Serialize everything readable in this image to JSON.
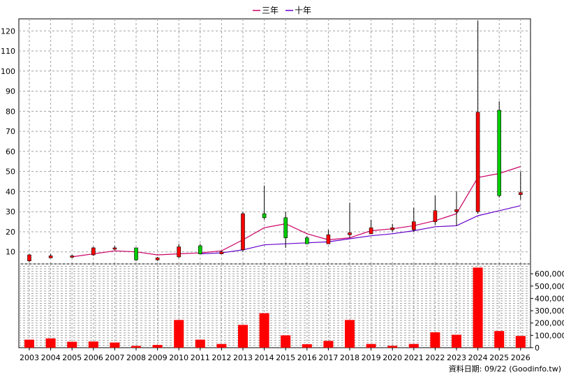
{
  "chart_data": {
    "type": "candlestick",
    "legend": [
      {
        "name": "三年",
        "color": "#cc0066"
      },
      {
        "name": "十年",
        "color": "#6600cc"
      }
    ],
    "source_label": "資料日期: 09/22 (Goodinfo.tw)",
    "categories": [
      "2003",
      "2004",
      "2005",
      "2006",
      "2007",
      "2008",
      "2009",
      "2010",
      "2011",
      "2012",
      "2013",
      "2014",
      "2015",
      "2016",
      "2017",
      "2018",
      "2019",
      "2020",
      "2021",
      "2022",
      "2023",
      "2024",
      "2025",
      "2026"
    ],
    "price_axis": {
      "ylim": [
        4,
        126
      ],
      "ticks": [
        10,
        20,
        30,
        40,
        50,
        60,
        70,
        80,
        90,
        100,
        110,
        120
      ],
      "grid": true
    },
    "volume_axis": {
      "ylim": [
        0,
        680000
      ],
      "ticks": [
        0,
        100000,
        200000,
        300000,
        400000,
        500000,
        600000
      ],
      "tick_labels": [
        "0",
        "100,000",
        "200,000",
        "300,000",
        "400,000",
        "500,000",
        "600,000"
      ]
    },
    "candles": [
      {
        "open": 5.5,
        "close": 8.5,
        "high": 9,
        "low": 5
      },
      {
        "open": 7,
        "close": 8,
        "high": 9,
        "low": 7
      },
      {
        "open": 7.5,
        "close": 8,
        "high": 8.5,
        "low": 7
      },
      {
        "open": 8.5,
        "close": 12,
        "high": 12.5,
        "low": 8
      },
      {
        "open": 12,
        "close": 12,
        "high": 13,
        "low": 11
      },
      {
        "open": 12,
        "close": 6,
        "high": 12,
        "low": 5.5
      },
      {
        "open": 6,
        "close": 7,
        "high": 7.5,
        "low": 5.5
      },
      {
        "open": 7.5,
        "close": 12.5,
        "high": 14,
        "low": 7
      },
      {
        "open": 13,
        "close": 9,
        "high": 14,
        "low": 9
      },
      {
        "open": 9,
        "close": 10,
        "high": 10.5,
        "low": 9
      },
      {
        "open": 11,
        "close": 29,
        "high": 30,
        "low": 10
      },
      {
        "open": 29,
        "close": 27,
        "high": 43,
        "low": 26
      },
      {
        "open": 27,
        "close": 17,
        "high": 30,
        "low": 12
      },
      {
        "open": 17,
        "close": 14,
        "high": 18,
        "low": 14
      },
      {
        "open": 14,
        "close": 18.5,
        "high": 21,
        "low": 14
      },
      {
        "open": 18.5,
        "close": 19.5,
        "high": 34.5,
        "low": 17
      },
      {
        "open": 19,
        "close": 22,
        "high": 26,
        "low": 19
      },
      {
        "open": 21,
        "close": 22,
        "high": 24,
        "low": 20
      },
      {
        "open": 21,
        "close": 25,
        "high": 32,
        "low": 20
      },
      {
        "open": 25,
        "close": 30.5,
        "high": 38,
        "low": 23.5
      },
      {
        "open": 30,
        "close": 31,
        "high": 40,
        "low": 23
      },
      {
        "open": 30,
        "close": 79.5,
        "high": 125,
        "low": 29
      },
      {
        "open": 80.5,
        "close": 38,
        "high": 85,
        "low": 37
      },
      {
        "open": 38.5,
        "close": 39.5,
        "high": 50,
        "low": 36
      }
    ],
    "series": [
      {
        "name": "三年",
        "values": [
          null,
          null,
          7.5,
          9,
          10.5,
          10,
          8.5,
          9,
          9.5,
          10.5,
          16,
          22,
          24,
          19,
          16,
          17,
          20.5,
          21.5,
          23,
          25.5,
          29,
          47,
          49,
          52.5
        ]
      },
      {
        "name": "十年",
        "values": [
          null,
          null,
          null,
          null,
          null,
          null,
          null,
          null,
          9,
          9.5,
          11,
          13.5,
          14,
          14.5,
          15,
          16.5,
          18,
          19,
          20.5,
          22.5,
          23,
          28,
          30.5,
          33
        ]
      }
    ],
    "volume": [
      65000,
      75000,
      48000,
      50000,
      42000,
      14000,
      22000,
      225000,
      65000,
      30000,
      185000,
      280000,
      100000,
      28000,
      55000,
      225000,
      30000,
      15000,
      30000,
      125000,
      105000,
      650000,
      135000,
      95000
    ]
  }
}
